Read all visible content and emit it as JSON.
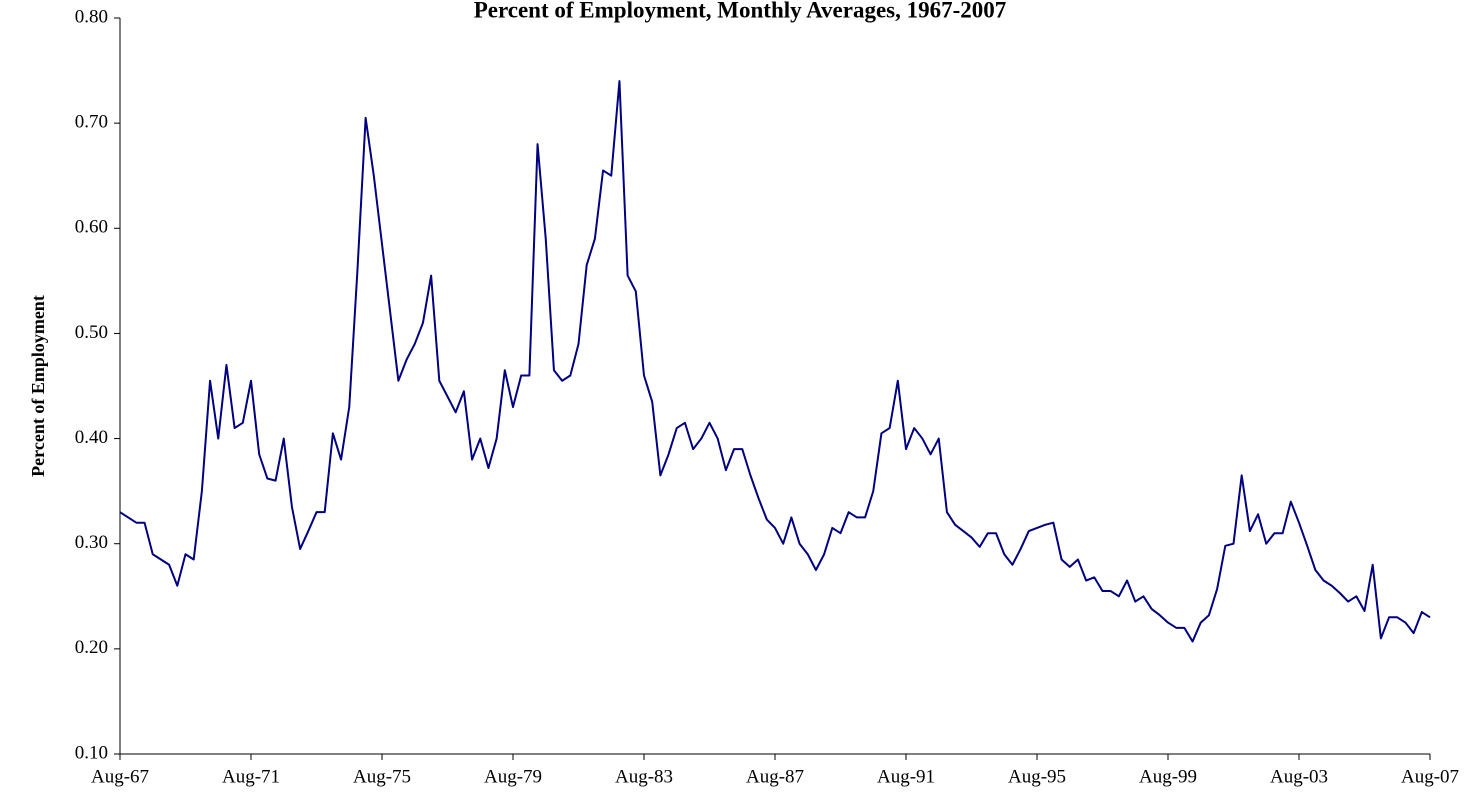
{
  "chart_data": {
    "type": "line",
    "title": "Percent of Employment, Monthly Averages, 1967-2007",
    "y_label": "Percent of Employment",
    "color": "#000080",
    "categories": [
      "Aug-67",
      null,
      null,
      null,
      null,
      null,
      null,
      null,
      null,
      null,
      null,
      null,
      null,
      null,
      null,
      null,
      "Aug-71",
      null,
      null,
      null,
      null,
      null,
      null,
      null,
      null,
      null,
      null,
      null,
      null,
      null,
      null,
      null,
      "Aug-75",
      null,
      null,
      null,
      null,
      null,
      null,
      null,
      null,
      null,
      null,
      null,
      null,
      null,
      null,
      null,
      "Aug-79",
      null,
      null,
      null,
      null,
      null,
      null,
      null,
      null,
      null,
      null,
      null,
      null,
      null,
      null,
      null,
      "Aug-83",
      null,
      null,
      null,
      null,
      null,
      null,
      null,
      null,
      null,
      null,
      null,
      null,
      null,
      null,
      null,
      "Aug-87",
      null,
      null,
      null,
      null,
      null,
      null,
      null,
      null,
      null,
      null,
      null,
      null,
      null,
      null,
      null,
      "Aug-91",
      null,
      null,
      null,
      null,
      null,
      null,
      null,
      null,
      null,
      null,
      null,
      null,
      null,
      null,
      null,
      "Aug-95",
      null,
      null,
      null,
      null,
      null,
      null,
      null,
      null,
      null,
      null,
      null,
      null,
      null,
      null,
      null,
      "Aug-99",
      null,
      null,
      null,
      null,
      null,
      null,
      null,
      null,
      null,
      null,
      null,
      null,
      null,
      null,
      null,
      "Aug-03",
      null,
      null,
      null,
      null,
      null,
      null,
      null,
      null,
      null,
      null,
      null,
      null,
      null,
      null,
      null,
      "Aug-07"
    ],
    "values": [
      0.33,
      0.325,
      0.32,
      0.32,
      0.29,
      0.285,
      0.28,
      0.26,
      0.29,
      0.285,
      0.35,
      0.455,
      0.4,
      0.47,
      0.41,
      0.415,
      0.455,
      0.385,
      0.362,
      0.36,
      0.4,
      0.335,
      0.295,
      0.312,
      0.33,
      0.33,
      0.405,
      0.38,
      0.43,
      0.56,
      0.705,
      0.65,
      0.585,
      0.52,
      0.455,
      0.475,
      0.49,
      0.51,
      0.555,
      0.455,
      0.44,
      0.425,
      0.445,
      0.38,
      0.4,
      0.372,
      0.4,
      0.465,
      0.43,
      0.46,
      0.46,
      0.68,
      0.59,
      0.465,
      0.455,
      0.46,
      0.49,
      0.565,
      0.59,
      0.655,
      0.65,
      0.74,
      0.555,
      0.54,
      0.46,
      0.435,
      0.365,
      0.385,
      0.41,
      0.415,
      0.39,
      0.4,
      0.415,
      0.4,
      0.37,
      0.39,
      0.39,
      0.365,
      0.343,
      0.323,
      0.315,
      0.3,
      0.325,
      0.3,
      0.29,
      0.275,
      0.29,
      0.315,
      0.31,
      0.33,
      0.325,
      0.325,
      0.35,
      0.405,
      0.41,
      0.455,
      0.39,
      0.41,
      0.4,
      0.385,
      0.4,
      0.33,
      0.318,
      0.312,
      0.306,
      0.297,
      0.31,
      0.31,
      0.29,
      0.28,
      0.295,
      0.312,
      0.315,
      0.318,
      0.32,
      0.285,
      0.278,
      0.285,
      0.265,
      0.268,
      0.255,
      0.255,
      0.25,
      0.265,
      0.245,
      0.25,
      0.238,
      0.232,
      0.225,
      0.22,
      0.22,
      0.207,
      0.225,
      0.232,
      0.257,
      0.298,
      0.3,
      0.365,
      0.312,
      0.328,
      0.3,
      0.31,
      0.31,
      0.34,
      0.32,
      0.298,
      0.275,
      0.265,
      0.26,
      0.253,
      0.245,
      0.25,
      0.236,
      0.28,
      0.21,
      0.23,
      0.23,
      0.225,
      0.215,
      0.235,
      0.23
    ],
    "ylim": [
      0.1,
      0.8
    ],
    "yticks": [
      {
        "value": 0.1,
        "label": "0.10"
      },
      {
        "value": 0.2,
        "label": "0.20"
      },
      {
        "value": 0.3,
        "label": "0.30"
      },
      {
        "value": 0.4,
        "label": "0.40"
      },
      {
        "value": 0.5,
        "label": "0.50"
      },
      {
        "value": 0.6,
        "label": "0.60"
      },
      {
        "value": 0.7,
        "label": "0.70"
      },
      {
        "value": 0.8,
        "label": "0.80"
      }
    ],
    "grid": false
  }
}
